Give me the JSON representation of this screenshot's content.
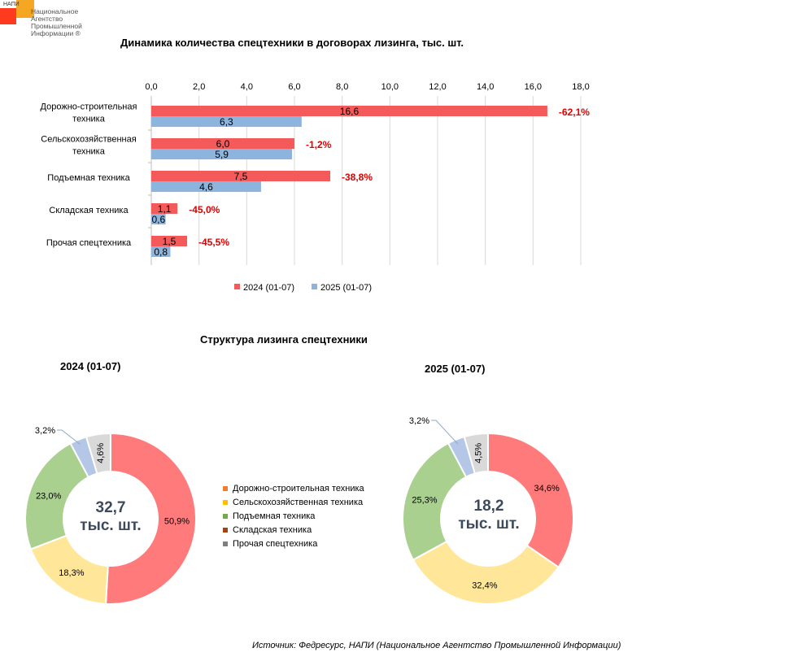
{
  "logo": {
    "small": "НАПИ",
    "lines": [
      "Национальное",
      "Агентство",
      "Промышленной",
      "Информации ®"
    ]
  },
  "bar_title": "Динамика количества спецтехники в договорах лизинга, тыс. шт.",
  "donut_title": "Структура лизинга спецтехники",
  "source": "Источник: Федресурс, НАПИ (Национальное Агентство Промышленной Информации)",
  "colors": {
    "bar_2024": "#f55a5a",
    "bar_2025": "#8db4dc",
    "change": "#e00000",
    "grid": "#d9d9d9"
  },
  "chart_data": [
    {
      "type": "bar",
      "orientation": "horizontal",
      "title": "Динамика количества спецтехники в договорах лизинга, тыс. шт.",
      "categories": [
        [
          "Дорожно-строительная",
          "техника"
        ],
        [
          "Сельскохозяйственная",
          "техника"
        ],
        [
          "Подъемная техника"
        ],
        [
          "Складская техника"
        ],
        [
          "Прочая спецтехника"
        ]
      ],
      "series": [
        {
          "name": "2024 (01-07)",
          "values": [
            16.6,
            6.0,
            7.5,
            1.1,
            1.5
          ],
          "labels": [
            "16,6",
            "6,0",
            "7,5",
            "1,1",
            "1,5"
          ],
          "color": "#f55a5a"
        },
        {
          "name": "2025 (01-07)",
          "values": [
            6.3,
            5.9,
            4.6,
            0.6,
            0.8
          ],
          "labels": [
            "6,3",
            "5,9",
            "4,6",
            "0,6",
            "0,8"
          ],
          "color": "#8db4dc"
        }
      ],
      "changes": [
        "-62,1%",
        "-1,2%",
        "-38,8%",
        "-45,0%",
        "-45,5%"
      ],
      "xlim": [
        0,
        18
      ],
      "xticks": [
        "0,0",
        "2,0",
        "4,0",
        "6,0",
        "8,0",
        "10,0",
        "12,0",
        "14,0",
        "16,0",
        "18,0"
      ],
      "axis_position": "top",
      "grid": true,
      "legend": "bottom"
    },
    {
      "type": "pie",
      "subtype": "donut",
      "title": "2024 (01-07)",
      "center_value": "32,7",
      "center_unit": "тыс. шт.",
      "slices": [
        {
          "name": "Дорожно-строительная техника",
          "value": 50.9,
          "label": "50,9%",
          "color": "#ff7b7b"
        },
        {
          "name": "Сельскохозяйственная техника",
          "value": 18.3,
          "label": "18,3%",
          "color": "#ffe699"
        },
        {
          "name": "Подъемная техника",
          "value": 23.0,
          "label": "23,0%",
          "color": "#a9d08e"
        },
        {
          "name": "Складская техника",
          "value": 3.2,
          "label": "3,2%",
          "color": "#b4c7e7"
        },
        {
          "name": "Прочая спецтехника",
          "value": 4.6,
          "label": "4,6%",
          "color": "#d9d9d9"
        }
      ]
    },
    {
      "type": "pie",
      "subtype": "donut",
      "title": "2025 (01-07)",
      "center_value": "18,2",
      "center_unit": "тыс. шт.",
      "slices": [
        {
          "name": "Дорожно-строительная техника",
          "value": 34.6,
          "label": "34,6%",
          "color": "#ff7b7b"
        },
        {
          "name": "Сельскохозяйственная техника",
          "value": 32.4,
          "label": "32,4%",
          "color": "#ffe699"
        },
        {
          "name": "Подъемная техника",
          "value": 25.3,
          "label": "25,3%",
          "color": "#a9d08e"
        },
        {
          "name": "Складская техника",
          "value": 3.2,
          "label": "3,2%",
          "color": "#b4c7e7"
        },
        {
          "name": "Прочая спецтехника",
          "value": 4.5,
          "label": "4,5%",
          "color": "#d9d9d9"
        }
      ]
    }
  ],
  "donut_legend": [
    {
      "label": "Дорожно-строительная техника",
      "color": "#ed7d31"
    },
    {
      "label": "Сельскохозяйственная техника",
      "color": "#ffc000"
    },
    {
      "label": "Подъемная техника",
      "color": "#70ad47"
    },
    {
      "label": "Складская техника",
      "color": "#9e480e"
    },
    {
      "label": "Прочая спецтехника",
      "color": "#7f7f7f"
    }
  ]
}
